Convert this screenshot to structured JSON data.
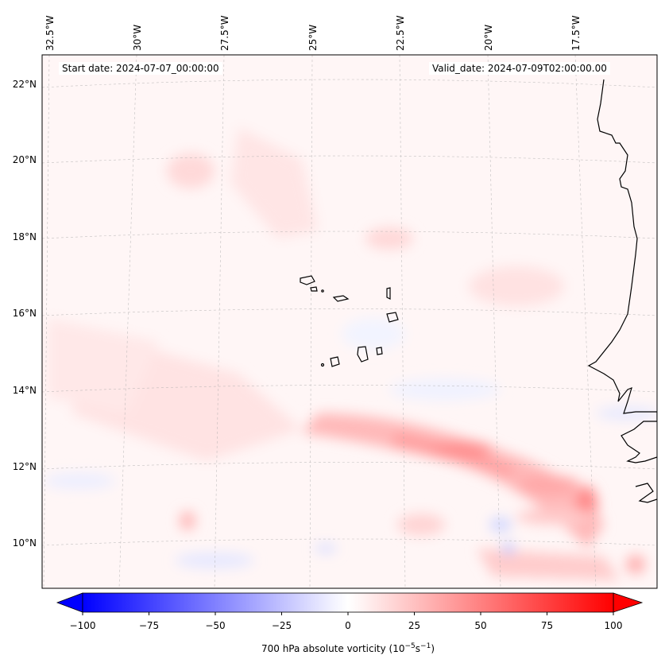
{
  "map": {
    "start_date": "Start date: 2024-07-07_00:00:00",
    "valid_date": "Valid_date: 2024-07-09T02:00:00.00",
    "lon_labels": [
      "32.5°W",
      "30°W",
      "27.5°W",
      "25°W",
      "22.5°W",
      "20°W",
      "17.5°W"
    ],
    "lat_labels": [
      "22°N",
      "20°N",
      "18°N",
      "16°N",
      "14°N",
      "12°N",
      "10°N"
    ],
    "features": [
      "Cape Verde islands",
      "West African coastline"
    ]
  },
  "colorbar": {
    "ticks": [
      "−100",
      "−75",
      "−50",
      "−25",
      "0",
      "25",
      "50",
      "75",
      "100"
    ],
    "label_main": "700 hPa absolute vorticity (10",
    "label_exp1": "−5",
    "label_mid": "s",
    "label_exp2": "−1",
    "label_end": ")",
    "min": -100,
    "max": 100,
    "step": 5,
    "colors": {
      "negative": "#0000ff",
      "zero": "#ffffff",
      "positive": "#ff0000"
    }
  }
}
